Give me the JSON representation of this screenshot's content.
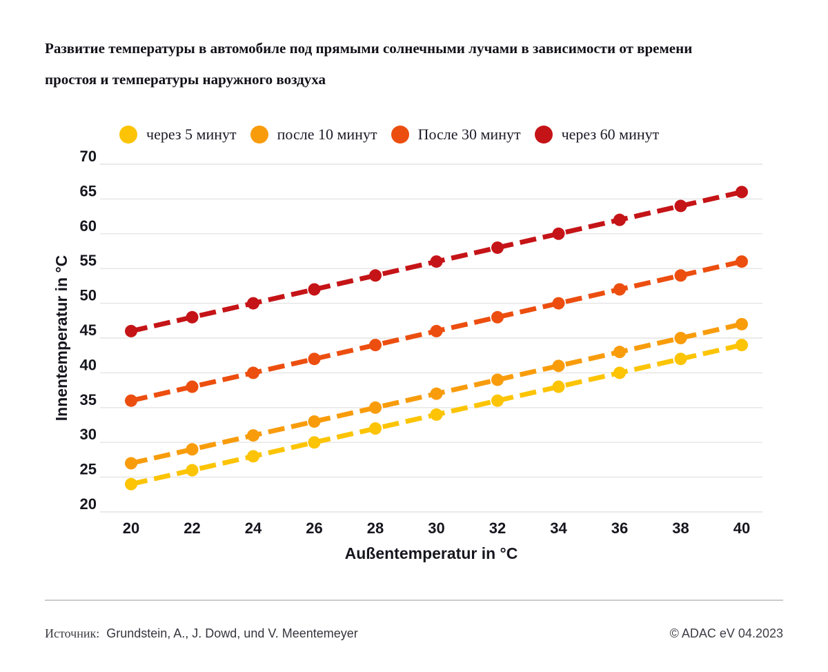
{
  "title": {
    "line1": "Развитие температуры в автомобиле под прямыми солнечными лучами в зависимости от времени",
    "line2": "простоя и температуры наружного воздуха"
  },
  "chart_data": {
    "type": "line",
    "x": [
      20,
      22,
      24,
      26,
      28,
      30,
      32,
      34,
      36,
      38,
      40
    ],
    "series": [
      {
        "name": "через 5 минут",
        "color": "#FCC404",
        "values": [
          24,
          26,
          28,
          30,
          32,
          34,
          36,
          38,
          40,
          42,
          44
        ]
      },
      {
        "name": "после 10 минут",
        "color": "#F89C0C",
        "values": [
          27,
          29,
          31,
          33,
          35,
          37,
          39,
          41,
          43,
          45,
          47
        ]
      },
      {
        "name": "После 30 минут",
        "color": "#EC4E0F",
        "values": [
          36,
          38,
          40,
          42,
          44,
          46,
          48,
          50,
          52,
          54,
          56
        ]
      },
      {
        "name": "через 60 минут",
        "color": "#C51417",
        "values": [
          46,
          48,
          50,
          52,
          54,
          56,
          58,
          60,
          62,
          64,
          66
        ]
      }
    ],
    "xlabel": "Außentemperatur in °C",
    "ylabel": "Innentemperatur in °C",
    "ylim": [
      20,
      70
    ],
    "ytick_step": 5,
    "grid": true,
    "legend_position": "top",
    "line_style": "dashed-with-dots"
  },
  "footer": {
    "source_label": "Источник:",
    "source_text": "Grundstein, A., J. Dowd, und V. Meentemeyer",
    "copyright": "© ADAC eV 04.2023"
  },
  "colors": {
    "grid": "#e4e4e4",
    "text": "#16161e",
    "divider": "#a8a8a8"
  }
}
